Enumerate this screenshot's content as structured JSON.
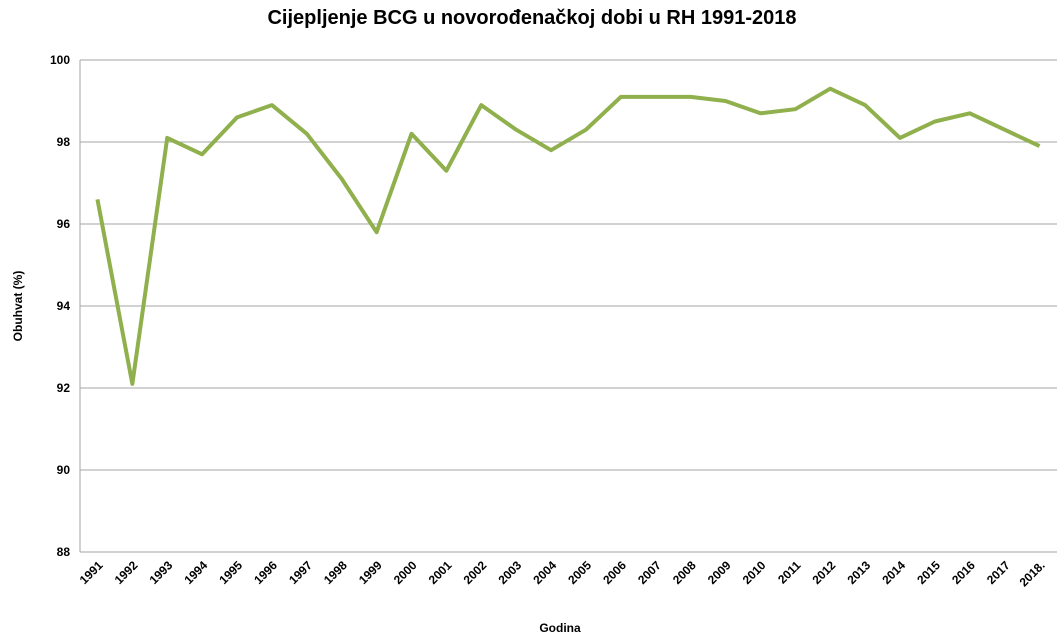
{
  "chart_data": {
    "type": "line",
    "title": "Cijepljenje BCG u novorođenačkoj dobi u RH 1991-2018",
    "x_label": "Godina",
    "y_label": "Obuhvat (%)",
    "categories": [
      "1991",
      "1992",
      "1993",
      "1994",
      "1995",
      "1996",
      "1997",
      "1998",
      "1999",
      "2000",
      "2001",
      "2002",
      "2003",
      "2004",
      "2005",
      "2006",
      "2007",
      "2008",
      "2009",
      "2010",
      "2011",
      "2012",
      "2013",
      "2014",
      "2015",
      "2016",
      "2017",
      "2018."
    ],
    "series": [
      {
        "name": "Obuhvat",
        "color": "#8fb04c",
        "values": [
          96.6,
          92.1,
          98.1,
          97.7,
          98.6,
          98.9,
          98.2,
          97.1,
          95.8,
          98.2,
          97.3,
          98.9,
          98.3,
          97.8,
          98.3,
          99.1,
          99.1,
          99.1,
          99.0,
          98.7,
          98.8,
          99.3,
          98.9,
          98.1,
          98.5,
          98.7,
          98.3,
          97.9
        ]
      }
    ],
    "ylim": [
      88,
      100
    ],
    "yticks": [
      88,
      90,
      92,
      94,
      96,
      98,
      100
    ],
    "grid": true
  }
}
